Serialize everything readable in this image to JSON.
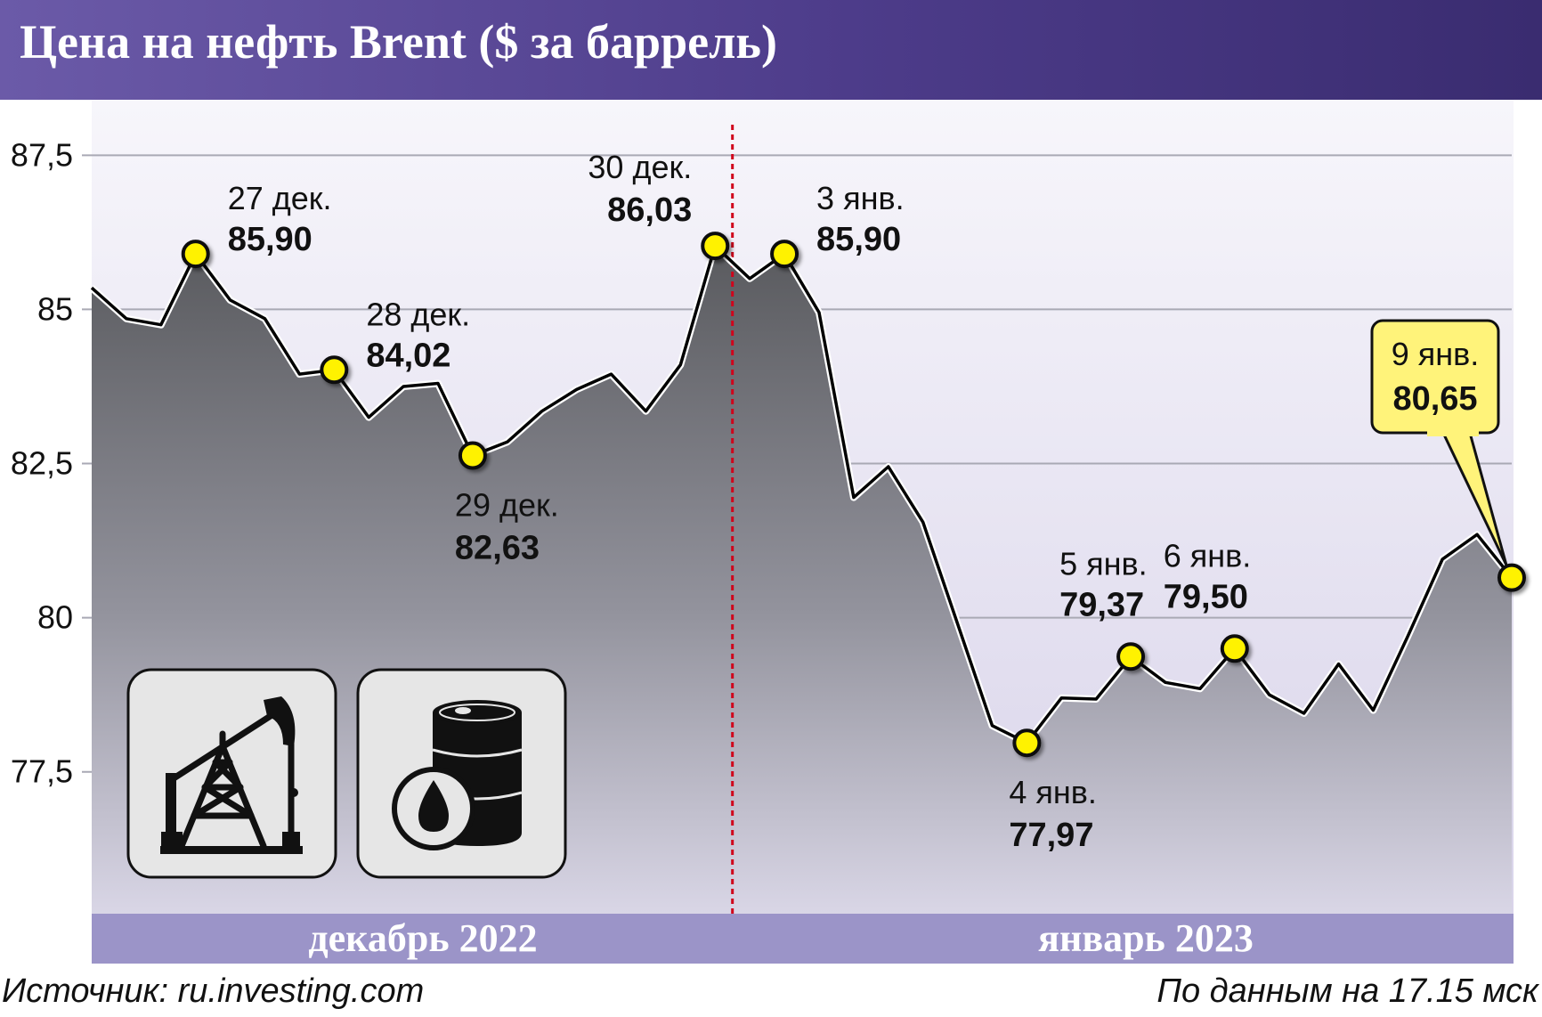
{
  "header": {
    "title": "Цена на нефть Brent ($ за баррель)"
  },
  "footer": {
    "source": "Источник: ru.investing.com",
    "as_of": "По данным на 17.15 мск"
  },
  "colors": {
    "header": "#5a489a",
    "line": "#000000",
    "marker": "#fff200",
    "callout": "#fff37a",
    "month_band": "#9b94c8",
    "divider": "#d0021b",
    "grid": "#a9a9b4"
  },
  "icons": [
    "oil-pump-icon",
    "oil-barrel-icon"
  ],
  "chart_data": {
    "type": "area",
    "title": "Цена на нефть Brent ($ за баррель)",
    "ylim": [
      75.2,
      88.4
    ],
    "yticks": [
      "87,5",
      "85",
      "82,5",
      "80",
      "77,5"
    ],
    "ytick_values": [
      87.5,
      85,
      82.5,
      80,
      77.5
    ],
    "grid": true,
    "months": [
      "декабрь 2022",
      "январь 2023"
    ],
    "month_split_index": 19,
    "values": [
      85.35,
      84.85,
      84.75,
      85.9,
      85.15,
      84.85,
      83.95,
      84.02,
      83.25,
      83.75,
      83.8,
      82.63,
      82.85,
      83.35,
      83.7,
      83.95,
      83.35,
      84.1,
      86.03,
      85.5,
      85.9,
      84.95,
      81.95,
      82.45,
      81.55,
      79.9,
      78.25,
      77.97,
      78.7,
      78.68,
      79.37,
      78.95,
      78.85,
      79.5,
      78.75,
      78.45,
      79.25,
      78.5,
      79.7,
      80.95,
      81.35,
      80.65
    ],
    "annotations": [
      {
        "index": 3,
        "date": "27 дек.",
        "value": "85,90",
        "pos": "above-right"
      },
      {
        "index": 7,
        "date": "28 дек.",
        "value": "84,02",
        "pos": "above-right"
      },
      {
        "index": 11,
        "date": "29 дек.",
        "value": "82,63",
        "pos": "below"
      },
      {
        "index": 18,
        "date": "30 дек.",
        "value": "86,03",
        "pos": "above-left"
      },
      {
        "index": 20,
        "date": "3 янв.",
        "value": "85,90",
        "pos": "above-right"
      },
      {
        "index": 27,
        "date": "4 янв.",
        "value": "77,97",
        "pos": "below"
      },
      {
        "index": 30,
        "date": "5 янв.",
        "value": "79,37",
        "pos": "above"
      },
      {
        "index": 33,
        "date": "6 янв.",
        "value": "79,50",
        "pos": "above"
      },
      {
        "index": 41,
        "date": "9 янв.",
        "value": "80,65",
        "pos": "callout"
      }
    ]
  }
}
